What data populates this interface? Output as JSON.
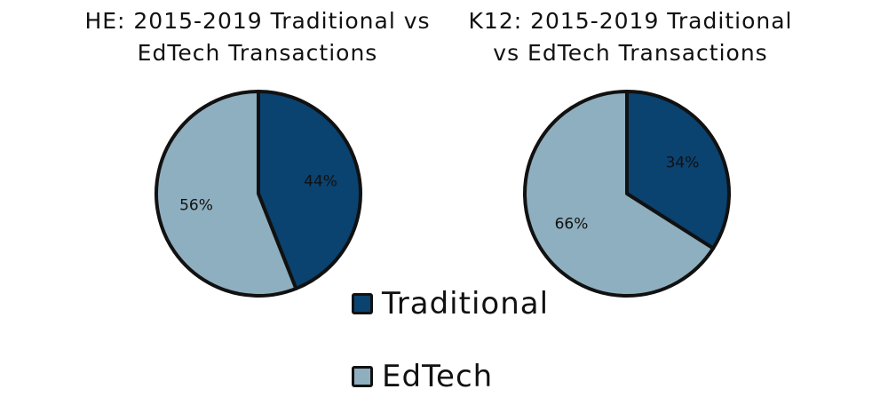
{
  "colors": {
    "traditional": "#0a4270",
    "edtech": "#8eafbf"
  },
  "legend": {
    "traditional": "Traditional",
    "edtech": "EdTech"
  },
  "chart_data": [
    {
      "type": "pie",
      "title": "HE: 2015-2019 Traditional vs\nEdTech Transactions",
      "categories": [
        "Traditional",
        "EdTech"
      ],
      "values": [
        44,
        56
      ],
      "labels": [
        "44%",
        "56%"
      ],
      "legend_position": "bottom-center"
    },
    {
      "type": "pie",
      "title": "K12: 2015-2019 Traditional\nvs EdTech Transactions",
      "categories": [
        "Traditional",
        "EdTech"
      ],
      "values": [
        34,
        66
      ],
      "labels": [
        "34%",
        "66%"
      ],
      "legend_position": "bottom-center"
    }
  ]
}
